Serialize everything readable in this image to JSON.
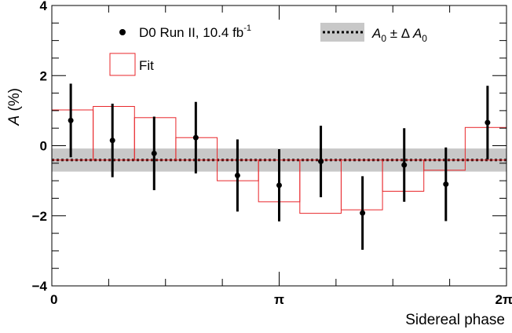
{
  "chart_data": {
    "type": "scatter",
    "title": "",
    "xlabel": "Sidereal phase",
    "ylabel_italic": "A",
    "ylabel_rest": " (%)",
    "xlim": [
      0,
      6.2832
    ],
    "ylim": [
      -4,
      4
    ],
    "x_tick_labels": [
      "0",
      "π",
      "2π"
    ],
    "x_tick_values": [
      0,
      3.1416,
      6.2832
    ],
    "y_tick_labels": [
      "−4",
      "−2",
      "0",
      "2",
      "4"
    ],
    "y_tick_values": [
      -4,
      -2,
      0,
      2,
      4
    ],
    "grid": false,
    "legend_position": "top",
    "band": {
      "center": -0.41,
      "delta": 0.33,
      "color": "#c8c8c8"
    },
    "data_series": {
      "name": "D0 Run II, 10.4 fb",
      "name_superscript": "-1",
      "color": "#000000",
      "x": [
        0.2618,
        0.8378,
        1.4137,
        1.9897,
        2.5656,
        3.1416,
        3.7176,
        4.2935,
        4.8695,
        5.4454,
        6.0214
      ],
      "y": [
        0.72,
        0.15,
        -0.22,
        0.23,
        -0.85,
        -1.13,
        -0.45,
        -1.92,
        -0.55,
        -1.1,
        0.66
      ],
      "err": [
        1.05,
        1.05,
        1.05,
        1.02,
        1.03,
        1.03,
        1.02,
        1.05,
        1.05,
        1.05,
        1.05
      ]
    },
    "fit_series": {
      "name": "Fit",
      "color": "#e8262a",
      "bin_edges": [
        0,
        0.5712,
        1.1424,
        1.7136,
        2.2848,
        2.856,
        3.4272,
        3.9984,
        4.5696,
        5.1408,
        5.712,
        6.2832
      ],
      "values": [
        1.02,
        1.12,
        0.8,
        0.23,
        -1.0,
        -1.6,
        -1.93,
        -1.83,
        -1.3,
        -0.7,
        0.52
      ]
    },
    "legend": {
      "band_label_A": "A",
      "band_label_sub": "0",
      "band_label_mid": " ± Δ ",
      "band_label_A2": "A",
      "band_label_sub2": "0"
    }
  }
}
